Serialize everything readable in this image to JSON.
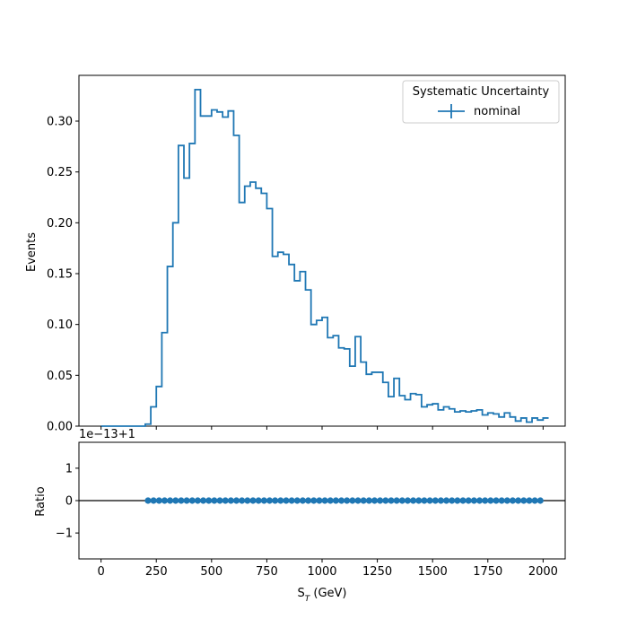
{
  "chart_data": [
    {
      "type": "histogram",
      "panel": "main",
      "xlabel": "S_T (GeV)",
      "ylabel": "Events",
      "xlim": [
        -100,
        2100
      ],
      "ylim": [
        0,
        0.345
      ],
      "xticks": [
        0,
        250,
        500,
        750,
        1000,
        1250,
        1500,
        1750,
        2000
      ],
      "yticks": [
        0.0,
        0.05,
        0.1,
        0.15,
        0.2,
        0.25,
        0.3
      ],
      "ytick_labels": [
        "0.00",
        "0.05",
        "0.10",
        "0.15",
        "0.20",
        "0.25",
        "0.30"
      ],
      "bin_width": 25,
      "bin_start": 0,
      "legend": {
        "title": "Systematic Uncertainty",
        "placement": "top-right",
        "entries": [
          "nominal"
        ]
      },
      "series": [
        {
          "name": "nominal",
          "color": "#1f77b4",
          "values": [
            0,
            0,
            0,
            0,
            0,
            0,
            0,
            0,
            0.002,
            0.019,
            0.039,
            0.092,
            0.157,
            0.2,
            0.276,
            0.244,
            0.278,
            0.331,
            0.305,
            0.305,
            0.311,
            0.309,
            0.304,
            0.31,
            0.286,
            0.22,
            0.236,
            0.24,
            0.234,
            0.229,
            0.214,
            0.167,
            0.171,
            0.169,
            0.159,
            0.143,
            0.152,
            0.134,
            0.1,
            0.104,
            0.107,
            0.087,
            0.089,
            0.077,
            0.076,
            0.059,
            0.088,
            0.063,
            0.051,
            0.053,
            0.053,
            0.043,
            0.029,
            0.047,
            0.03,
            0.026,
            0.032,
            0.031,
            0.019,
            0.021,
            0.022,
            0.016,
            0.019,
            0.017,
            0.014,
            0.015,
            0.014,
            0.015,
            0.016,
            0.011,
            0.013,
            0.012,
            0.009,
            0.013,
            0.009,
            0.005,
            0.008,
            0.004,
            0.008,
            0.006,
            0.008
          ]
        }
      ]
    },
    {
      "type": "scatter",
      "panel": "ratio",
      "xlabel": "S_T (GeV)",
      "ylabel": "Ratio",
      "offset_label": "1e−13+1",
      "xlim": [
        -100,
        2100
      ],
      "ylim": [
        -1.8,
        1.8
      ],
      "xticks": [
        0,
        250,
        500,
        750,
        1000,
        1250,
        1500,
        1750,
        2000
      ],
      "xtick_labels": [
        "0",
        "250",
        "500",
        "750",
        "1000",
        "1250",
        "1500",
        "1750",
        "2000"
      ],
      "yticks": [
        -1,
        0,
        1
      ],
      "ytick_labels": [
        "−1",
        "0",
        "1"
      ],
      "reference_line": 0,
      "marker_color": "#1f77b4",
      "x": [
        212.5,
        237.5,
        262.5,
        287.5,
        312.5,
        337.5,
        362.5,
        387.5,
        412.5,
        437.5,
        462.5,
        487.5,
        512.5,
        537.5,
        562.5,
        587.5,
        612.5,
        637.5,
        662.5,
        687.5,
        712.5,
        737.5,
        762.5,
        787.5,
        812.5,
        837.5,
        862.5,
        887.5,
        912.5,
        937.5,
        962.5,
        987.5,
        1012.5,
        1037.5,
        1062.5,
        1087.5,
        1112.5,
        1137.5,
        1162.5,
        1187.5,
        1212.5,
        1237.5,
        1262.5,
        1287.5,
        1312.5,
        1337.5,
        1362.5,
        1387.5,
        1412.5,
        1437.5,
        1462.5,
        1487.5,
        1512.5,
        1537.5,
        1562.5,
        1587.5,
        1612.5,
        1637.5,
        1662.5,
        1687.5,
        1712.5,
        1737.5,
        1762.5,
        1787.5,
        1812.5,
        1837.5,
        1862.5,
        1887.5,
        1912.5,
        1937.5,
        1962.5,
        1987.5
      ],
      "y_value": 0
    }
  ]
}
